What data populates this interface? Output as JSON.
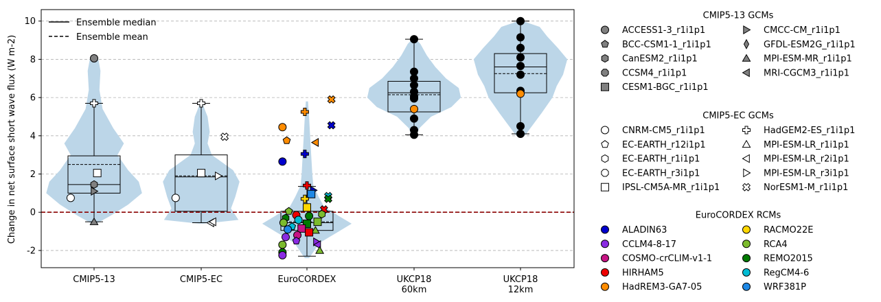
{
  "chart_data": {
    "type": "violin-box",
    "ylabel": "Change in net surface short wave flux (W m-2)",
    "ylim": [
      -2.9,
      10.6
    ],
    "yticks": [
      -2,
      0,
      2,
      4,
      6,
      8,
      10
    ],
    "grid": "horizontal dashed",
    "reference_line": {
      "y": 0,
      "style": "dashed",
      "color": "#8b0000"
    },
    "categories": [
      "CMIP5-13",
      "CMIP5-EC",
      "EuroCORDEX",
      "UKCP18\n60km",
      "UKCP18\n12km"
    ],
    "stats_legend": {
      "placement": "top-left",
      "median_label": "Ensemble median",
      "mean_label": "Ensemble mean"
    },
    "boxes": [
      {
        "q1": 1.0,
        "median": 1.45,
        "mean": 2.5,
        "q3": 2.95,
        "whisker_low": -0.5,
        "whisker_high": 5.7
      },
      {
        "q1": 0.05,
        "median": 1.85,
        "mean": 1.9,
        "q3": 3.0,
        "whisker_low": -0.55,
        "whisker_high": 5.7
      },
      {
        "q1": -0.95,
        "median": -0.55,
        "mean": -0.5,
        "q3": 0.05,
        "whisker_low": -2.3,
        "whisker_high": 1.35
      },
      {
        "q1": 5.25,
        "median": 6.25,
        "mean": 6.15,
        "q3": 6.85,
        "whisker_low": 4.05,
        "whisker_high": 9.05
      },
      {
        "q1": 6.25,
        "median": 7.6,
        "mean": 7.25,
        "q3": 8.3,
        "whisker_low": 4.1,
        "whisker_high": 10.0
      }
    ],
    "violins": [
      {
        "points": [
          [
            -0.6,
            0.02
          ],
          [
            -0.2,
            0.15
          ],
          [
            0.4,
            0.32
          ],
          [
            1.0,
            0.45
          ],
          [
            1.6,
            0.42
          ],
          [
            2.2,
            0.32
          ],
          [
            3.0,
            0.22
          ],
          [
            3.6,
            0.28
          ],
          [
            4.4,
            0.18
          ],
          [
            5.4,
            0.08
          ],
          [
            6.4,
            0.05
          ],
          [
            7.4,
            0.06
          ],
          [
            8.0,
            0.04
          ],
          [
            8.1,
            0.01
          ]
        ]
      },
      {
        "points": [
          [
            -0.6,
            0.02
          ],
          [
            -0.4,
            0.35
          ],
          [
            0.2,
            0.28
          ],
          [
            0.8,
            0.32
          ],
          [
            1.6,
            0.36
          ],
          [
            2.2,
            0.3
          ],
          [
            3.0,
            0.1
          ],
          [
            3.6,
            0.06
          ],
          [
            4.2,
            0.08
          ],
          [
            5.0,
            0.06
          ],
          [
            5.7,
            0.01
          ]
        ]
      },
      {
        "points": [
          [
            -2.4,
            0.02
          ],
          [
            -1.6,
            0.12
          ],
          [
            -1.0,
            0.3
          ],
          [
            -0.6,
            0.42
          ],
          [
            -0.2,
            0.3
          ],
          [
            0.3,
            0.16
          ],
          [
            0.8,
            0.11
          ],
          [
            1.4,
            0.06
          ],
          [
            2.0,
            0.05
          ],
          [
            3.0,
            0.04
          ],
          [
            4.0,
            0.03
          ],
          [
            5.0,
            0.02
          ],
          [
            5.8,
            0.01
          ]
        ]
      },
      {
        "points": [
          [
            4.0,
            0.02
          ],
          [
            4.4,
            0.05
          ],
          [
            5.0,
            0.16
          ],
          [
            5.5,
            0.35
          ],
          [
            6.0,
            0.44
          ],
          [
            6.5,
            0.42
          ],
          [
            7.0,
            0.3
          ],
          [
            7.6,
            0.2
          ],
          [
            8.2,
            0.12
          ],
          [
            8.8,
            0.06
          ],
          [
            9.1,
            0.01
          ]
        ]
      },
      {
        "points": [
          [
            4.0,
            0.04
          ],
          [
            4.6,
            0.12
          ],
          [
            5.2,
            0.2
          ],
          [
            6.0,
            0.3
          ],
          [
            6.6,
            0.34
          ],
          [
            7.2,
            0.4
          ],
          [
            8.0,
            0.44
          ],
          [
            8.6,
            0.35
          ],
          [
            9.2,
            0.25
          ],
          [
            9.7,
            0.18
          ],
          [
            10.0,
            0.02
          ]
        ]
      }
    ],
    "legend_groups": [
      {
        "title": "CMIP5-13 GCMs",
        "items": [
          {
            "label": "ACCESS1-3_r1i1p1",
            "marker": "circle",
            "fill": "#808080"
          },
          {
            "label": "BCC-CSM1-1_r1i1p1",
            "marker": "pentagon",
            "fill": "#808080"
          },
          {
            "label": "CanESM2_r1i1p1",
            "marker": "hexagon",
            "fill": "#808080"
          },
          {
            "label": "CCSM4_r1i1p1",
            "marker": "octagon",
            "fill": "#808080"
          },
          {
            "label": "CESM1-BGC_r1i1p1",
            "marker": "square",
            "fill": "#808080"
          },
          {
            "label": "CMCC-CM_r1i1p1",
            "marker": "tri-right",
            "fill": "#808080"
          },
          {
            "label": "GFDL-ESM2G_r1i1p1",
            "marker": "thin-diamond",
            "fill": "#808080"
          },
          {
            "label": "MPI-ESM-MR_r1i1p1",
            "marker": "tri-up",
            "fill": "#808080"
          },
          {
            "label": "MRI-CGCM3_r1i1p1",
            "marker": "tri-left",
            "fill": "#808080"
          }
        ]
      },
      {
        "title": "CMIP5-EC GCMs",
        "items": [
          {
            "label": "CNRM-CM5_r1i1p1",
            "marker": "circle",
            "fill": "#ffffff"
          },
          {
            "label": "EC-EARTH_r12i1p1",
            "marker": "pentagon",
            "fill": "#ffffff"
          },
          {
            "label": "EC-EARTH_r1i1p1",
            "marker": "hexagon",
            "fill": "#ffffff"
          },
          {
            "label": "EC-EARTH_r3i1p1",
            "marker": "octagon",
            "fill": "#ffffff"
          },
          {
            "label": "IPSL-CM5A-MR_r1i1p1",
            "marker": "square",
            "fill": "#ffffff"
          },
          {
            "label": "HadGEM2-ES_r1i1p1",
            "marker": "plus",
            "fill": "#ffffff"
          },
          {
            "label": "MPI-ESM-LR_r1i1p1",
            "marker": "tri-up",
            "fill": "#ffffff"
          },
          {
            "label": "MPI-ESM-LR_r2i1p1",
            "marker": "tri-left",
            "fill": "#ffffff"
          },
          {
            "label": "MPI-ESM-LR_r3i1p1",
            "marker": "tri-right",
            "fill": "#ffffff"
          },
          {
            "label": "NorESM1-M_r1i1p1",
            "marker": "x",
            "fill": "#ffffff"
          }
        ]
      },
      {
        "title": "EuroCORDEX RCMs",
        "items": [
          {
            "label": "ALADIN63",
            "marker": "circle",
            "fill": "#0000cd"
          },
          {
            "label": "CCLM4-8-17",
            "marker": "circle",
            "fill": "#8a2be2"
          },
          {
            "label": "COSMO-crCLIM-v1-1",
            "marker": "circle",
            "fill": "#c71585"
          },
          {
            "label": "HIRHAM5",
            "marker": "circle",
            "fill": "#ee0000"
          },
          {
            "label": "HadREM3-GA7-05",
            "marker": "circle",
            "fill": "#ff8c00"
          },
          {
            "label": "RACMO22E",
            "marker": "circle",
            "fill": "#ffd700"
          },
          {
            "label": "RCA4",
            "marker": "circle",
            "fill": "#7cbb2d"
          },
          {
            "label": "REMO2015",
            "marker": "circle",
            "fill": "#007a00"
          },
          {
            "label": "RegCM4-6",
            "marker": "circle",
            "fill": "#00bcd4"
          },
          {
            "label": "WRF381P",
            "marker": "circle",
            "fill": "#1e88e5"
          }
        ]
      }
    ],
    "points": [
      {
        "cat": 0,
        "dx": 0.0,
        "y": 8.05,
        "marker": "circle",
        "fill": "#808080"
      },
      {
        "cat": 0,
        "dx": 0.0,
        "y": 5.7,
        "marker": "plus",
        "fill": "#ffffff"
      },
      {
        "cat": 0,
        "dx": 0.03,
        "y": 2.05,
        "marker": "square",
        "fill": "#ffffff"
      },
      {
        "cat": 0,
        "dx": 0.0,
        "y": 1.45,
        "marker": "hexagon",
        "fill": "#808080"
      },
      {
        "cat": 0,
        "dx": 0.0,
        "y": 1.1,
        "marker": "tri-right",
        "fill": "#808080"
      },
      {
        "cat": 0,
        "dx": -0.22,
        "y": 0.75,
        "marker": "circle",
        "fill": "#ffffff"
      },
      {
        "cat": 0,
        "dx": 0.0,
        "y": -0.5,
        "marker": "tri-up",
        "fill": "#808080"
      },
      {
        "cat": 1,
        "dx": 0.0,
        "y": 5.7,
        "marker": "plus",
        "fill": "#ffffff"
      },
      {
        "cat": 1,
        "dx": 0.22,
        "y": 3.95,
        "marker": "x",
        "fill": "#ffffff"
      },
      {
        "cat": 1,
        "dx": 0.0,
        "y": 2.05,
        "marker": "square",
        "fill": "#ffffff"
      },
      {
        "cat": 1,
        "dx": 0.16,
        "y": 1.9,
        "marker": "tri-right",
        "fill": "#ffffff"
      },
      {
        "cat": 1,
        "dx": -0.24,
        "y": 0.75,
        "marker": "circle",
        "fill": "#ffffff"
      },
      {
        "cat": 1,
        "dx": 0.09,
        "y": -0.55,
        "marker": "tri-left",
        "fill": "#ffffff"
      },
      {
        "cat": 1,
        "dx": 0.11,
        "y": -0.5,
        "marker": "tri-left",
        "fill": "#ffffff"
      },
      {
        "cat": 2,
        "dx": 0.23,
        "y": 5.9,
        "marker": "x",
        "fill": "#ff8c00"
      },
      {
        "cat": 2,
        "dx": -0.02,
        "y": 5.25,
        "marker": "plus",
        "fill": "#ff8c00"
      },
      {
        "cat": 2,
        "dx": -0.23,
        "y": 4.45,
        "marker": "circle",
        "fill": "#ff8c00"
      },
      {
        "cat": 2,
        "dx": -0.19,
        "y": 3.75,
        "marker": "pentagon",
        "fill": "#ff8c00"
      },
      {
        "cat": 2,
        "dx": 0.08,
        "y": 3.65,
        "marker": "tri-left",
        "fill": "#ff8c00"
      },
      {
        "cat": 2,
        "dx": 0.23,
        "y": 4.55,
        "marker": "x",
        "fill": "#0000cd"
      },
      {
        "cat": 2,
        "dx": -0.02,
        "y": 3.05,
        "marker": "plus",
        "fill": "#0000cd"
      },
      {
        "cat": 2,
        "dx": -0.23,
        "y": 2.65,
        "marker": "circle",
        "fill": "#0000cd"
      },
      {
        "cat": 2,
        "dx": 0.0,
        "y": 1.4,
        "marker": "plus",
        "fill": "#ee0000"
      },
      {
        "cat": 2,
        "dx": 0.06,
        "y": 1.15,
        "marker": "tri-right",
        "fill": "#0000cd"
      },
      {
        "cat": 2,
        "dx": 0.04,
        "y": 0.95,
        "marker": "square",
        "fill": "#1e88e5"
      },
      {
        "cat": 2,
        "dx": 0.2,
        "y": 0.85,
        "marker": "x",
        "fill": "#00bcd4"
      },
      {
        "cat": 2,
        "dx": 0.2,
        "y": 0.7,
        "marker": "x",
        "fill": "#007a00"
      },
      {
        "cat": 2,
        "dx": -0.02,
        "y": 0.7,
        "marker": "plus",
        "fill": "#ffd700"
      },
      {
        "cat": 2,
        "dx": 0.0,
        "y": 0.25,
        "marker": "square",
        "fill": "#ffd700"
      },
      {
        "cat": 2,
        "dx": 0.16,
        "y": 0.15,
        "marker": "x",
        "fill": "#ee0000"
      },
      {
        "cat": 2,
        "dx": -0.17,
        "y": 0.05,
        "marker": "pentagon",
        "fill": "#7cbb2d"
      },
      {
        "cat": 2,
        "dx": 0.14,
        "y": -0.1,
        "marker": "hexagon",
        "fill": "#7cbb2d"
      },
      {
        "cat": 2,
        "dx": -0.1,
        "y": -0.15,
        "marker": "circle",
        "fill": "#ee0000"
      },
      {
        "cat": 2,
        "dx": 0.02,
        "y": -0.2,
        "marker": "circle",
        "fill": "#007a00"
      },
      {
        "cat": 2,
        "dx": -0.2,
        "y": -0.3,
        "marker": "hexagon",
        "fill": "#007a00"
      },
      {
        "cat": 2,
        "dx": -0.08,
        "y": -0.4,
        "marker": "circle",
        "fill": "#00bcd4"
      },
      {
        "cat": 2,
        "dx": 0.1,
        "y": -0.5,
        "marker": "square",
        "fill": "#7cbb2d"
      },
      {
        "cat": 2,
        "dx": -0.22,
        "y": -0.55,
        "marker": "circle",
        "fill": "#7cbb2d"
      },
      {
        "cat": 2,
        "dx": 0.0,
        "y": -0.6,
        "marker": "square",
        "fill": "#007a00"
      },
      {
        "cat": 2,
        "dx": -0.14,
        "y": -0.75,
        "marker": "pentagon",
        "fill": "#00bcd4"
      },
      {
        "cat": 2,
        "dx": -0.05,
        "y": -0.85,
        "marker": "square",
        "fill": "#c71585"
      },
      {
        "cat": 2,
        "dx": -0.18,
        "y": -0.9,
        "marker": "circle",
        "fill": "#1e88e5"
      },
      {
        "cat": 2,
        "dx": 0.08,
        "y": -0.95,
        "marker": "tri-up",
        "fill": "#7cbb2d"
      },
      {
        "cat": 2,
        "dx": 0.02,
        "y": -1.05,
        "marker": "square",
        "fill": "#ee0000"
      },
      {
        "cat": 2,
        "dx": -0.09,
        "y": -1.2,
        "marker": "circle",
        "fill": "#c71585"
      },
      {
        "cat": 2,
        "dx": -0.2,
        "y": -1.3,
        "marker": "circle",
        "fill": "#8a2be2"
      },
      {
        "cat": 2,
        "dx": -0.1,
        "y": -1.5,
        "marker": "pentagon",
        "fill": "#8a2be2"
      },
      {
        "cat": 2,
        "dx": 0.09,
        "y": -1.55,
        "marker": "tri-right",
        "fill": "#8a2be2"
      },
      {
        "cat": 2,
        "dx": 0.1,
        "y": -1.7,
        "marker": "tri-left",
        "fill": "#8a2be2"
      },
      {
        "cat": 2,
        "dx": -0.23,
        "y": -1.7,
        "marker": "circle",
        "fill": "#7cbb2d"
      },
      {
        "cat": 2,
        "dx": 0.12,
        "y": -2.0,
        "marker": "tri-up",
        "fill": "#7cbb2d"
      },
      {
        "cat": 2,
        "dx": -0.23,
        "y": -2.1,
        "marker": "circle",
        "fill": "#007a00"
      },
      {
        "cat": 2,
        "dx": -0.23,
        "y": -2.25,
        "marker": "circle",
        "fill": "#8a2be2"
      },
      {
        "cat": 3,
        "dx": 0.0,
        "y": 9.05,
        "marker": "circle",
        "fill": "#000000"
      },
      {
        "cat": 3,
        "dx": 0.0,
        "y": 7.35,
        "marker": "circle",
        "fill": "#000000"
      },
      {
        "cat": 3,
        "dx": 0.0,
        "y": 7.0,
        "marker": "circle",
        "fill": "#000000"
      },
      {
        "cat": 3,
        "dx": 0.0,
        "y": 6.65,
        "marker": "circle",
        "fill": "#000000"
      },
      {
        "cat": 3,
        "dx": 0.0,
        "y": 6.3,
        "marker": "circle",
        "fill": "#000000"
      },
      {
        "cat": 3,
        "dx": 0.0,
        "y": 6.05,
        "marker": "circle",
        "fill": "#000000"
      },
      {
        "cat": 3,
        "dx": 0.0,
        "y": 5.95,
        "marker": "circle",
        "fill": "#000000"
      },
      {
        "cat": 3,
        "dx": 0.0,
        "y": 5.4,
        "marker": "circle",
        "fill": "#ff8c00"
      },
      {
        "cat": 3,
        "dx": 0.0,
        "y": 4.9,
        "marker": "circle",
        "fill": "#000000"
      },
      {
        "cat": 3,
        "dx": 0.0,
        "y": 4.3,
        "marker": "circle",
        "fill": "#000000"
      },
      {
        "cat": 3,
        "dx": 0.0,
        "y": 4.05,
        "marker": "circle",
        "fill": "#000000"
      },
      {
        "cat": 4,
        "dx": 0.0,
        "y": 10.0,
        "marker": "circle",
        "fill": "#000000"
      },
      {
        "cat": 4,
        "dx": 0.0,
        "y": 9.15,
        "marker": "circle",
        "fill": "#000000"
      },
      {
        "cat": 4,
        "dx": 0.0,
        "y": 8.6,
        "marker": "circle",
        "fill": "#000000"
      },
      {
        "cat": 4,
        "dx": 0.0,
        "y": 8.1,
        "marker": "circle",
        "fill": "#000000"
      },
      {
        "cat": 4,
        "dx": 0.0,
        "y": 7.65,
        "marker": "circle",
        "fill": "#000000"
      },
      {
        "cat": 4,
        "dx": 0.0,
        "y": 7.2,
        "marker": "circle",
        "fill": "#000000"
      },
      {
        "cat": 4,
        "dx": 0.0,
        "y": 6.35,
        "marker": "circle",
        "fill": "#000000"
      },
      {
        "cat": 4,
        "dx": 0.0,
        "y": 6.2,
        "marker": "circle",
        "fill": "#ff8c00"
      },
      {
        "cat": 4,
        "dx": 0.0,
        "y": 4.5,
        "marker": "circle",
        "fill": "#000000"
      },
      {
        "cat": 4,
        "dx": 0.0,
        "y": 4.1,
        "marker": "circle",
        "fill": "#000000"
      }
    ],
    "colors": {
      "violin": "#bcd6e8",
      "grid": "#b0b0b0",
      "zero_line": "#8b0000"
    }
  }
}
